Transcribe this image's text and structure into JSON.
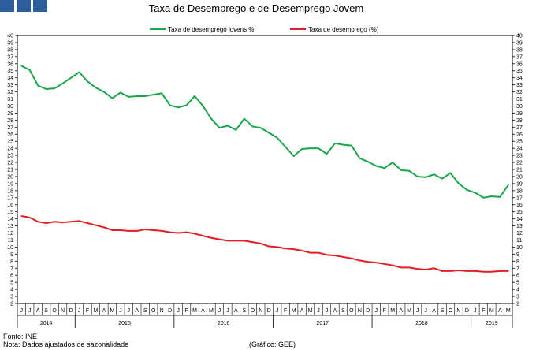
{
  "chart_data": {
    "type": "line",
    "title": "Taxa de Desemprego e de Desemprego Jovem",
    "ylim": [
      2,
      40
    ],
    "y_ticks_left": [
      2,
      3,
      4,
      5,
      6,
      7,
      8,
      9,
      10,
      11,
      12,
      13,
      14,
      15,
      16,
      17,
      18,
      19,
      20,
      21,
      22,
      23,
      24,
      25,
      26,
      27,
      28,
      29,
      30,
      31,
      32,
      33,
      34,
      35,
      36,
      37,
      38,
      39,
      40
    ],
    "y_ticks_right": [
      2,
      3,
      4,
      5,
      6,
      7,
      8,
      9,
      10,
      11,
      12,
      13,
      14,
      15,
      16,
      17,
      18,
      19,
      20,
      21,
      22,
      23,
      24,
      25,
      26,
      27,
      28,
      29,
      30,
      31,
      32,
      33,
      34,
      35,
      36,
      37,
      38,
      39,
      40
    ],
    "months": [
      "J",
      "J",
      "A",
      "S",
      "O",
      "N",
      "D",
      "J",
      "F",
      "M",
      "A",
      "M",
      "J",
      "J",
      "A",
      "S",
      "O",
      "N",
      "D",
      "J",
      "F",
      "M",
      "A",
      "M",
      "J",
      "J",
      "A",
      "S",
      "O",
      "N",
      "D",
      "J",
      "F",
      "M",
      "A",
      "M",
      "J",
      "J",
      "A",
      "S",
      "O",
      "N",
      "D",
      "J",
      "F",
      "M",
      "A",
      "M",
      "J",
      "J",
      "A",
      "S",
      "O",
      "N",
      "D",
      "J",
      "F",
      "M",
      "A",
      "M"
    ],
    "years": [
      {
        "label": "2014",
        "start": 0,
        "end": 7
      },
      {
        "label": "2015",
        "start": 7,
        "end": 19
      },
      {
        "label": "2016",
        "start": 19,
        "end": 31
      },
      {
        "label": "2017",
        "start": 31,
        "end": 43
      },
      {
        "label": "2018",
        "start": 43,
        "end": 55
      },
      {
        "label": "2019",
        "start": 55,
        "end": 60
      }
    ],
    "legend_position": "top-center",
    "grid": false,
    "series": [
      {
        "name": "Taxa de desemprego jovens %",
        "color": "#1aa64a",
        "values": [
          35.7,
          35.1,
          32.9,
          32.4,
          32.5,
          33.2,
          34.0,
          34.8,
          33.5,
          32.6,
          32.0,
          31.1,
          31.9,
          31.3,
          31.4,
          31.4,
          31.6,
          31.8,
          30.1,
          29.8,
          30.1,
          31.4,
          30.0,
          28.2,
          26.9,
          27.2,
          26.6,
          28.2,
          27.1,
          26.9,
          26.2,
          25.5,
          24.2,
          22.9,
          23.9,
          24.0,
          24.0,
          23.2,
          24.7,
          24.5,
          24.4,
          22.6,
          22.1,
          21.5,
          21.2,
          22.0,
          20.9,
          20.8,
          20.0,
          19.9,
          20.3,
          19.7,
          20.5,
          19.0,
          18.1,
          17.7,
          17.0,
          17.2,
          17.1,
          18.8
        ]
      },
      {
        "name": "Taxa de desemprego (%)",
        "color": "#e31e24",
        "values": [
          14.4,
          14.2,
          13.6,
          13.4,
          13.6,
          13.5,
          13.6,
          13.7,
          13.4,
          13.1,
          12.8,
          12.4,
          12.4,
          12.3,
          12.3,
          12.5,
          12.4,
          12.3,
          12.1,
          12.0,
          12.1,
          11.9,
          11.6,
          11.3,
          11.1,
          10.9,
          10.9,
          10.9,
          10.7,
          10.5,
          10.1,
          10.0,
          9.8,
          9.7,
          9.5,
          9.2,
          9.2,
          8.9,
          8.8,
          8.6,
          8.4,
          8.1,
          7.9,
          7.8,
          7.6,
          7.4,
          7.1,
          7.1,
          6.9,
          6.8,
          7.0,
          6.6,
          6.6,
          6.7,
          6.6,
          6.6,
          6.5,
          6.5,
          6.6,
          6.6
        ]
      }
    ]
  },
  "footer": {
    "source": "Fonte: INE",
    "note": "Nota: Dados ajustados de sazonalidade",
    "credit": "(Gráfico: GEE)"
  },
  "colors": {
    "logo": "#2e5d9e",
    "axis": "#000000"
  }
}
